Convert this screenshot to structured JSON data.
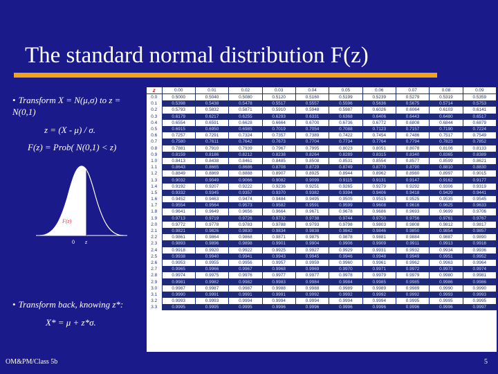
{
  "title": "The standard normal distribution F(z)",
  "bullet1": "Transform X = N(μ,σ) to z = N(0,1)",
  "eq1": "z = (X - μ) / σ.",
  "eq2": "F(z) = Prob( N(0,1) < z)",
  "curve": {
    "fz_label": "F(z)",
    "zero_label": "0",
    "z_label": "z"
  },
  "bullet2": "Transform back, knowing z*:",
  "eq3": "X* = μ + z*σ.",
  "footer_left": "OM&PM/Class 5b",
  "page_number": "5",
  "colors": {
    "background": "#1a1a8a",
    "rule": "#f2a31c",
    "curve": "#ffffff",
    "shade": "#ffffff"
  },
  "table": {
    "corner": "z",
    "headers": [
      "0.00",
      "0.01",
      "0.02",
      "0.03",
      "0.04",
      "0.05",
      "0.06",
      "0.07",
      "0.08",
      "0.09"
    ],
    "highlight": {
      "row": "1.6",
      "cols": [
        "0.04",
        "0.05"
      ]
    },
    "rows": [
      {
        "z": "0.0",
        "v": [
          "0.5000",
          "0.5040",
          "0.5080",
          "0.5120",
          "0.5160",
          "0.5199",
          "0.5239",
          "0.5279",
          "0.5319",
          "0.5359"
        ]
      },
      {
        "z": "0.1",
        "v": [
          "0.5398",
          "0.5438",
          "0.5478",
          "0.5517",
          "0.5557",
          "0.5596",
          "0.5636",
          "0.5675",
          "0.5714",
          "0.5753"
        ]
      },
      {
        "z": "0.2",
        "v": [
          "0.5793",
          "0.5832",
          "0.5871",
          "0.5910",
          "0.5948",
          "0.5987",
          "0.6026",
          "0.6064",
          "0.6103",
          "0.6141"
        ]
      },
      {
        "z": "0.3",
        "v": [
          "0.6179",
          "0.6217",
          "0.6255",
          "0.6293",
          "0.6331",
          "0.6368",
          "0.6406",
          "0.6443",
          "0.6480",
          "0.6517"
        ]
      },
      {
        "z": "0.4",
        "v": [
          "0.6554",
          "0.6591",
          "0.6628",
          "0.6664",
          "0.6700",
          "0.6736",
          "0.6772",
          "0.6808",
          "0.6844",
          "0.6879"
        ]
      },
      {
        "z": "0.5",
        "v": [
          "0.6915",
          "0.6950",
          "0.6985",
          "0.7019",
          "0.7054",
          "0.7088",
          "0.7123",
          "0.7157",
          "0.7190",
          "0.7224"
        ]
      },
      {
        "z": "0.6",
        "v": [
          "0.7257",
          "0.7291",
          "0.7324",
          "0.7357",
          "0.7389",
          "0.7422",
          "0.7454",
          "0.7486",
          "0.7517",
          "0.7549"
        ]
      },
      {
        "z": "0.7",
        "v": [
          "0.7580",
          "0.7611",
          "0.7642",
          "0.7673",
          "0.7704",
          "0.7734",
          "0.7764",
          "0.7794",
          "0.7823",
          "0.7852"
        ]
      },
      {
        "z": "0.8",
        "v": [
          "0.7881",
          "0.7910",
          "0.7939",
          "0.7967",
          "0.7995",
          "0.8023",
          "0.8051",
          "0.8078",
          "0.8106",
          "0.8133"
        ]
      },
      {
        "z": "0.9",
        "v": [
          "0.8159",
          "0.8186",
          "0.8212",
          "0.8238",
          "0.8264",
          "0.8289",
          "0.8315",
          "0.8340",
          "0.8365",
          "0.8389"
        ]
      },
      {
        "z": "1.0",
        "v": [
          "0.8413",
          "0.8438",
          "0.8461",
          "0.8485",
          "0.8508",
          "0.8531",
          "0.8554",
          "0.8577",
          "0.8599",
          "0.8621"
        ]
      },
      {
        "z": "1.1",
        "v": [
          "0.8643",
          "0.8665",
          "0.8686",
          "0.8708",
          "0.8729",
          "0.8749",
          "0.8770",
          "0.8790",
          "0.8810",
          "0.8830"
        ]
      },
      {
        "z": "1.2",
        "v": [
          "0.8849",
          "0.8869",
          "0.8888",
          "0.8907",
          "0.8925",
          "0.8944",
          "0.8962",
          "0.8980",
          "0.8997",
          "0.9015"
        ]
      },
      {
        "z": "1.3",
        "v": [
          "0.9032",
          "0.9049",
          "0.9066",
          "0.9082",
          "0.9099",
          "0.9115",
          "0.9131",
          "0.9147",
          "0.9162",
          "0.9177"
        ]
      },
      {
        "z": "1.4",
        "v": [
          "0.9192",
          "0.9207",
          "0.9222",
          "0.9236",
          "0.9251",
          "0.9265",
          "0.9279",
          "0.9292",
          "0.9306",
          "0.9319"
        ]
      },
      {
        "z": "1.5",
        "v": [
          "0.9332",
          "0.9345",
          "0.9357",
          "0.9370",
          "0.9382",
          "0.9394",
          "0.9406",
          "0.9418",
          "0.9429",
          "0.9441"
        ]
      },
      {
        "z": "1.6",
        "v": [
          "0.9452",
          "0.9463",
          "0.9474",
          "0.9484",
          "0.9495",
          "0.9505",
          "0.9515",
          "0.9525",
          "0.9535",
          "0.9545"
        ]
      },
      {
        "z": "1.7",
        "v": [
          "0.9554",
          "0.9564",
          "0.9573",
          "0.9582",
          "0.9591",
          "0.9599",
          "0.9608",
          "0.9616",
          "0.9625",
          "0.9633"
        ]
      },
      {
        "z": "1.8",
        "v": [
          "0.9641",
          "0.9649",
          "0.9656",
          "0.9664",
          "0.9671",
          "0.9678",
          "0.9686",
          "0.9693",
          "0.9699",
          "0.9706"
        ]
      },
      {
        "z": "1.9",
        "v": [
          "0.9713",
          "0.9719",
          "0.9726",
          "0.9732",
          "0.9738",
          "0.9744",
          "0.9750",
          "0.9756",
          "0.9761",
          "0.9767"
        ]
      },
      {
        "z": "2.0",
        "v": [
          "0.9772",
          "0.9778",
          "0.9783",
          "0.9788",
          "0.9793",
          "0.9798",
          "0.9803",
          "0.9808",
          "0.9812",
          "0.9817"
        ]
      },
      {
        "z": "2.1",
        "v": [
          "0.9821",
          "0.9826",
          "0.9830",
          "0.9834",
          "0.9838",
          "0.9842",
          "0.9846",
          "0.9850",
          "0.9854",
          "0.9857"
        ]
      },
      {
        "z": "2.2",
        "v": [
          "0.9861",
          "0.9864",
          "0.9868",
          "0.9871",
          "0.9875",
          "0.9878",
          "0.9881",
          "0.9884",
          "0.9887",
          "0.9890"
        ]
      },
      {
        "z": "2.3",
        "v": [
          "0.9893",
          "0.9896",
          "0.9898",
          "0.9901",
          "0.9904",
          "0.9906",
          "0.9909",
          "0.9911",
          "0.9913",
          "0.9916"
        ]
      },
      {
        "z": "2.4",
        "v": [
          "0.9918",
          "0.9920",
          "0.9922",
          "0.9925",
          "0.9927",
          "0.9929",
          "0.9931",
          "0.9932",
          "0.9934",
          "0.9936"
        ]
      },
      {
        "z": "2.5",
        "v": [
          "0.9938",
          "0.9940",
          "0.9941",
          "0.9943",
          "0.9945",
          "0.9946",
          "0.9948",
          "0.9949",
          "0.9951",
          "0.9952"
        ]
      },
      {
        "z": "2.6",
        "v": [
          "0.9953",
          "0.9955",
          "0.9956",
          "0.9957",
          "0.9959",
          "0.9960",
          "0.9961",
          "0.9962",
          "0.9963",
          "0.9964"
        ]
      },
      {
        "z": "2.7",
        "v": [
          "0.9965",
          "0.9966",
          "0.9967",
          "0.9968",
          "0.9969",
          "0.9970",
          "0.9971",
          "0.9972",
          "0.9973",
          "0.9974"
        ]
      },
      {
        "z": "2.8",
        "v": [
          "0.9974",
          "0.9975",
          "0.9976",
          "0.9977",
          "0.9977",
          "0.9978",
          "0.9979",
          "0.9979",
          "0.9980",
          "0.9981"
        ]
      },
      {
        "z": "2.9",
        "v": [
          "0.9981",
          "0.9982",
          "0.9982",
          "0.9983",
          "0.9984",
          "0.9984",
          "0.9985",
          "0.9985",
          "0.9986",
          "0.9986"
        ]
      },
      {
        "z": "3.0",
        "v": [
          "0.9987",
          "0.9987",
          "0.9987",
          "0.9988",
          "0.9988",
          "0.9989",
          "0.9989",
          "0.9989",
          "0.9990",
          "0.9990"
        ]
      },
      {
        "z": "3.1",
        "v": [
          "0.9990",
          "0.9991",
          "0.9991",
          "0.9991",
          "0.9992",
          "0.9992",
          "0.9992",
          "0.9992",
          "0.9993",
          "0.9993"
        ]
      },
      {
        "z": "3.2",
        "v": [
          "0.9993",
          "0.9993",
          "0.9994",
          "0.9994",
          "0.9994",
          "0.9994",
          "0.9994",
          "0.9995",
          "0.9995",
          "0.9995"
        ]
      },
      {
        "z": "3.3",
        "v": [
          "0.9995",
          "0.9995",
          "0.9995",
          "0.9996",
          "0.9996",
          "0.9996",
          "0.9996",
          "0.9996",
          "0.9996",
          "0.9997"
        ]
      }
    ]
  }
}
